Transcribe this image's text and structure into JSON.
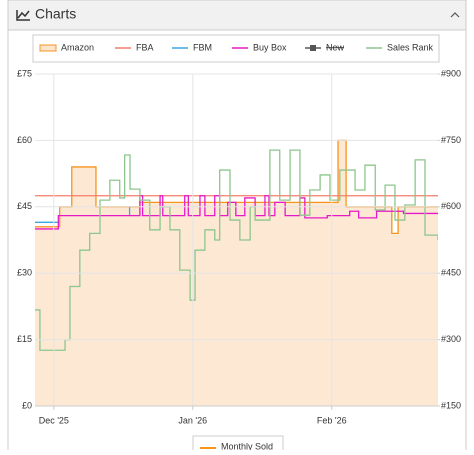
{
  "panel": {
    "title": "Charts"
  },
  "chart_data": {
    "type": "line",
    "step": true,
    "grid": true,
    "xlim": [
      -4.2,
      85.7
    ],
    "xticks": [
      {
        "value": 0,
        "label": "Dec '25"
      },
      {
        "value": 31,
        "label": "Jan '26"
      },
      {
        "value": 62,
        "label": "Feb '26"
      }
    ],
    "ylim": [
      0,
      75
    ],
    "yticks": [
      {
        "value": 0,
        "label": "£0"
      },
      {
        "value": 15,
        "label": "£15"
      },
      {
        "value": 30,
        "label": "£30"
      },
      {
        "value": 45,
        "label": "£45"
      },
      {
        "value": 60,
        "label": "£60"
      },
      {
        "value": 75,
        "label": "£75"
      }
    ],
    "y2lim": [
      150,
      900
    ],
    "y2ticks": [
      {
        "value": 150,
        "label": "#150"
      },
      {
        "value": 300,
        "label": "#300"
      },
      {
        "value": 450,
        "label": "#450"
      },
      {
        "value": 600,
        "label": "#600"
      },
      {
        "value": 750,
        "label": "#750"
      },
      {
        "value": 900,
        "label": "#900"
      }
    ],
    "series": [
      {
        "name": "Amazon",
        "color": "#f7941d",
        "fill": "#fde4cc",
        "x": [
          -4.2,
          1.3,
          4,
          9.4,
          19.2,
          61.6,
          63.4,
          65.2,
          75.4,
          76.8,
          85.7
        ],
        "values": [
          40.5,
          45,
          54,
          45,
          46,
          46,
          60,
          45,
          39,
          45,
          45
        ]
      },
      {
        "name": "FBA",
        "color": "#f47c6a",
        "x": [
          -4.2,
          85.7
        ],
        "values": [
          47.5,
          47.5
        ]
      },
      {
        "name": "FBM",
        "color": "#3aa6dd",
        "x": [
          -4.2,
          1.3,
          1.3,
          16.9,
          16.9
        ],
        "values": [
          41.5,
          41.5,
          null,
          45,
          43
        ]
      },
      {
        "name": "Buy Box",
        "color": "#e619c8",
        "x": [
          -4.2,
          1.0,
          19.2,
          19.8,
          23.7,
          24.3,
          29.2,
          30,
          32.6,
          33.7,
          35.9,
          37,
          38.8,
          40.6,
          42.6,
          44.9,
          47.1,
          48,
          49.3,
          51.6,
          54.9,
          56,
          61,
          66,
          68,
          72,
          78,
          85.7
        ],
        "values": [
          40,
          43,
          47.5,
          43,
          47.5,
          43,
          47.5,
          43,
          47.5,
          43,
          47.5,
          43,
          46,
          43,
          47,
          43,
          47.5,
          43,
          46,
          43,
          47,
          42.5,
          43,
          44,
          42.5,
          44,
          43.5,
          43.5
        ]
      },
      {
        "name": "New",
        "color": "#555555",
        "hidden": true
      },
      {
        "name": "Sales Rank",
        "color": "#8cc68c",
        "axis": "y2",
        "x": [
          -4.2,
          -3.1,
          2.5,
          3.6,
          5.8,
          8,
          10.3,
          12.5,
          14.7,
          15.8,
          17,
          19.2,
          21.4,
          23.7,
          25.9,
          28.1,
          30.4,
          31.5,
          33.7,
          35.9,
          37,
          39.3,
          41.5,
          43.8,
          44.9,
          48.2,
          50.4,
          52.7,
          54.9,
          57.1,
          59.4,
          61.6,
          63.8,
          67.2,
          69.4,
          71.7,
          73.9,
          76.1,
          78.3,
          80.6,
          82.8,
          85.7
        ],
        "values": [
          367,
          276,
          300,
          420,
          502,
          540,
          615,
          660,
          620,
          717,
          640,
          615,
          548,
          600,
          548,
          457,
          389,
          502,
          548,
          525,
          683,
          570,
          525,
          600,
          570,
          728,
          615,
          728,
          581,
          638,
          672,
          615,
          683,
          638,
          694,
          593,
          649,
          570,
          604,
          706,
          536,
          525
        ]
      }
    ],
    "extra_legend": "Monthly Sold"
  }
}
